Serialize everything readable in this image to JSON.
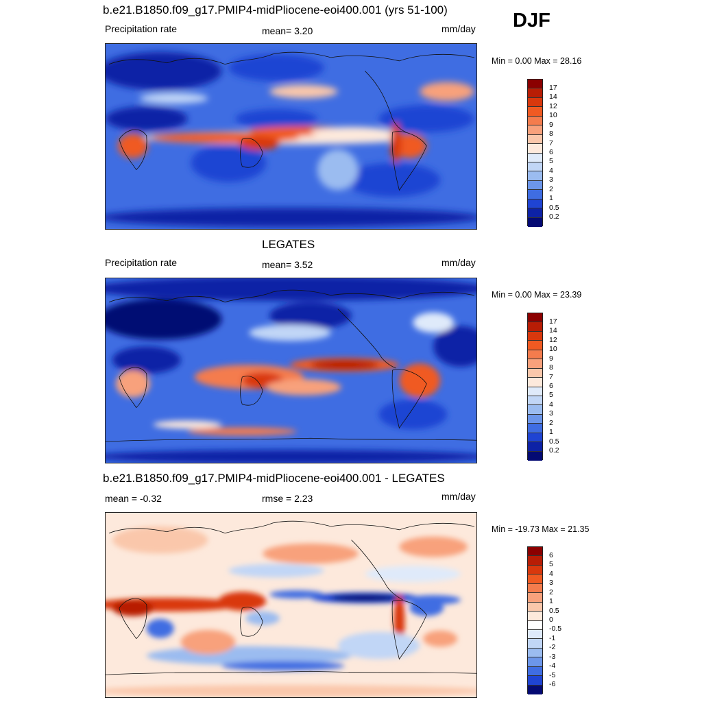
{
  "season": "DJF",
  "panels": [
    {
      "title": "b.e21.B1850.f09_g17.PMIP4-midPliocene-eoi400.001 (yrs 51-100)",
      "left_label": "Precipitation rate",
      "center_label": "mean=   3.20",
      "units": "mm/day",
      "minmax": "Min =   0.00 Max =  28.16",
      "colorbar": {
        "labels": [
          "17",
          "14",
          "12",
          "10",
          "9",
          "8",
          "7",
          "6",
          "5",
          "4",
          "3",
          "2",
          "1",
          "0.5",
          "0.2"
        ],
        "colors": [
          "#8b0000",
          "#b81d05",
          "#d9380d",
          "#f05a22",
          "#f47c4d",
          "#f8a17c",
          "#fac7ab",
          "#fde9dc",
          "#dfeafa",
          "#c1d6f6",
          "#9bbcf0",
          "#6c96ea",
          "#3f6de2",
          "#1f44d3",
          "#0d22a6",
          "#040a73"
        ]
      }
    },
    {
      "title": "LEGATES",
      "left_label": "Precipitation rate",
      "center_label": "mean=   3.52",
      "units": "mm/day",
      "minmax": "Min =   0.00 Max =  23.39",
      "colorbar": {
        "labels": [
          "17",
          "14",
          "12",
          "10",
          "9",
          "8",
          "7",
          "6",
          "5",
          "4",
          "3",
          "2",
          "1",
          "0.5",
          "0.2"
        ],
        "colors": [
          "#8b0000",
          "#b81d05",
          "#d9380d",
          "#f05a22",
          "#f47c4d",
          "#f8a17c",
          "#fac7ab",
          "#fde9dc",
          "#dfeafa",
          "#c1d6f6",
          "#9bbcf0",
          "#6c96ea",
          "#3f6de2",
          "#1f44d3",
          "#0d22a6",
          "#040a73"
        ]
      }
    },
    {
      "title": "b.e21.B1850.f09_g17.PMIP4-midPliocene-eoi400.001 - LEGATES",
      "left_label": "mean =  -0.32",
      "center_label": "rmse =   2.23",
      "units": "mm/day",
      "minmax": "Min = -19.73 Max =  21.35",
      "colorbar": {
        "labels": [
          "6",
          "5",
          "4",
          "3",
          "2",
          "1",
          "0.5",
          "0",
          "-0.5",
          "-1",
          "-2",
          "-3",
          "-4",
          "-5",
          "-6"
        ],
        "colors": [
          "#8b0000",
          "#b81d05",
          "#d9380d",
          "#f05a22",
          "#f47c4d",
          "#f8a17c",
          "#fac7ab",
          "#fde9dc",
          "#ffffff",
          "#dfeafa",
          "#c1d6f6",
          "#9bbcf0",
          "#6c96ea",
          "#3f6de2",
          "#1f44d3",
          "#040a73"
        ]
      }
    }
  ]
}
